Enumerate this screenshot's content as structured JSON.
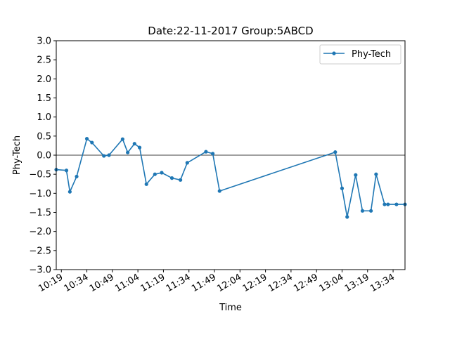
{
  "chart_data": {
    "type": "line",
    "title": "Date:22-11-2017 Group:5ABCD",
    "xlabel": "Time",
    "ylabel": "Phy-Tech",
    "ylim": [
      -3.0,
      3.0
    ],
    "yticks": [
      -3.0,
      -2.5,
      -2.0,
      -1.5,
      -1.0,
      -0.5,
      0.0,
      0.5,
      1.0,
      1.5,
      2.0,
      2.5,
      3.0
    ],
    "ytick_labels": [
      "−3.0",
      "−2.5",
      "−2.0",
      "−1.5",
      "−1.0",
      "−0.5",
      "0.0",
      "0.5",
      "1.0",
      "1.5",
      "2.0",
      "2.5",
      "3.0"
    ],
    "xlim": [
      "10:16",
      "13:41"
    ],
    "xtick_labels": [
      "10:19",
      "10:34",
      "10:49",
      "11:04",
      "11:19",
      "11:34",
      "11:49",
      "12:04",
      "12:19",
      "12:34",
      "12:49",
      "13:04",
      "13:19",
      "13:34"
    ],
    "legend": {
      "position": "top-right",
      "entries": [
        "Phy-Tech"
      ]
    },
    "grid": false,
    "zero_line": true,
    "series": [
      {
        "name": "Phy-Tech",
        "color": "#1f77b4",
        "x": [
          "10:16",
          "10:22",
          "10:24",
          "10:28",
          "10:34",
          "10:37",
          "10:44",
          "10:47",
          "10:55",
          "10:58",
          "11:02",
          "11:05",
          "11:09",
          "11:14",
          "11:18",
          "11:24",
          "11:29",
          "11:33",
          "11:44",
          "11:48",
          "11:52",
          "13:00",
          "13:04",
          "13:07",
          "13:12",
          "13:16",
          "13:21",
          "13:24",
          "13:29",
          "13:31",
          "13:36",
          "13:41"
        ],
        "values": [
          -0.38,
          -0.4,
          -0.96,
          -0.56,
          0.43,
          0.33,
          -0.02,
          0.0,
          0.42,
          0.07,
          0.3,
          0.2,
          -0.76,
          -0.5,
          -0.46,
          -0.6,
          -0.65,
          -0.2,
          0.09,
          0.04,
          -0.94,
          0.08,
          -0.87,
          -1.62,
          -0.52,
          -1.46,
          -1.46,
          -0.5,
          -1.29,
          -1.29,
          -1.29,
          -1.29
        ]
      }
    ]
  }
}
